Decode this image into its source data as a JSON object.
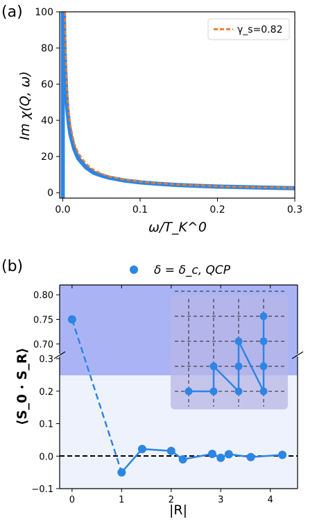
{
  "figure": {
    "panel_a_label": "(a)",
    "panel_b_label": "(b)"
  },
  "chart_data": [
    {
      "type": "line",
      "panel": "(a)",
      "xlabel": "ω/T_K^0",
      "ylabel": "Im χ(Q, ω)",
      "xlim": [
        -0.004,
        0.3
      ],
      "ylim": [
        -3,
        100
      ],
      "xticks": [
        "0.0",
        "0.1",
        "0.2",
        "0.3"
      ],
      "yticks": [
        "0",
        "20",
        "40",
        "60",
        "80",
        "100"
      ],
      "grid": false,
      "legend_position": "top-right",
      "legend_label": "γ_s=0.82",
      "series": [
        {
          "style": "solid",
          "color": "#2d85e4",
          "x": [
            0.0015,
            0.002,
            0.003,
            0.004,
            0.005,
            0.006,
            0.008,
            0.01,
            0.015,
            0.02,
            0.03,
            0.04,
            0.05,
            0.06,
            0.08,
            0.1,
            0.12,
            0.15,
            0.18,
            0.2,
            0.22,
            0.25,
            0.28,
            0.3
          ],
          "y": [
            100,
            85,
            70,
            60,
            52,
            46,
            38,
            32,
            24,
            19,
            14,
            11,
            9.5,
            8.3,
            6.7,
            5.7,
            5.0,
            4.2,
            3.7,
            3.4,
            3.2,
            2.9,
            2.6,
            2.5
          ]
        },
        {
          "name": "γ_s=0.82",
          "style": "dashed",
          "color": "#f07c28",
          "x": [
            0.0028,
            0.003,
            0.004,
            0.005,
            0.006,
            0.008,
            0.01,
            0.015,
            0.02,
            0.03,
            0.04,
            0.05,
            0.06,
            0.08,
            0.1,
            0.12,
            0.15,
            0.18,
            0.2,
            0.22,
            0.25,
            0.28,
            0.3
          ],
          "y": [
            100,
            92,
            74,
            62,
            54,
            44,
            37,
            27,
            22,
            16,
            12.6,
            10.5,
            9.0,
            7.2,
            6.1,
            5.3,
            4.5,
            3.9,
            3.6,
            3.3,
            3.0,
            2.8,
            2.6
          ]
        }
      ]
    },
    {
      "type": "scatter",
      "panel": "(b)",
      "xlabel": "|R|",
      "ylabel": "⟨S_0 · S_R⟩",
      "xlim": [
        -0.25,
        4.55
      ],
      "ylim_lower": [
        -0.1,
        0.3
      ],
      "ylim_upper": [
        0.68,
        0.82
      ],
      "xticks": [
        "0",
        "1",
        "2",
        "3",
        "4"
      ],
      "yticks_lower": [
        "−0.1",
        "0.0",
        "0.1",
        "0.2",
        "0.3"
      ],
      "yticks_upper": [
        "0.70",
        "0.75",
        "0.80"
      ],
      "broken_axis": true,
      "grid": false,
      "legend_position": "top-left",
      "legend_label": "δ = δ_c, QCP",
      "reference_line": 0,
      "series": [
        {
          "name": "δ = δ_c, QCP",
          "color": "#2d85e4",
          "x": [
            0,
            1,
            1.414,
            2,
            2.236,
            2.828,
            3,
            3.162,
            3.606,
            4.243
          ],
          "y": [
            0.75,
            -0.05,
            0.022,
            0.016,
            -0.01,
            0.007,
            -0.005,
            0.006,
            -0.003,
            0.004
          ]
        }
      ],
      "inset": {
        "description_grid_size": 5,
        "points": [
          [
            0,
            0
          ],
          [
            1,
            0
          ],
          [
            1,
            1
          ],
          [
            2,
            0
          ],
          [
            2,
            1
          ],
          [
            3,
            0
          ],
          [
            3,
            1
          ],
          [
            2,
            2
          ],
          [
            3,
            2
          ],
          [
            3,
            3
          ]
        ],
        "links": [
          [
            [
              0,
              0
            ],
            [
              1,
              0
            ]
          ],
          [
            [
              1,
              0
            ],
            [
              1,
              1
            ]
          ],
          [
            [
              1,
              1
            ],
            [
              2,
              0
            ]
          ],
          [
            [
              2,
              0
            ],
            [
              2,
              1
            ]
          ],
          [
            [
              2,
              1
            ],
            [
              2,
              2
            ]
          ],
          [
            [
              2,
              2
            ],
            [
              3,
              0
            ]
          ],
          [
            [
              3,
              0
            ],
            [
              3,
              1
            ]
          ],
          [
            [
              3,
              1
            ],
            [
              3,
              2
            ]
          ],
          [
            [
              3,
              2
            ],
            [
              3,
              3
            ]
          ]
        ]
      }
    }
  ]
}
